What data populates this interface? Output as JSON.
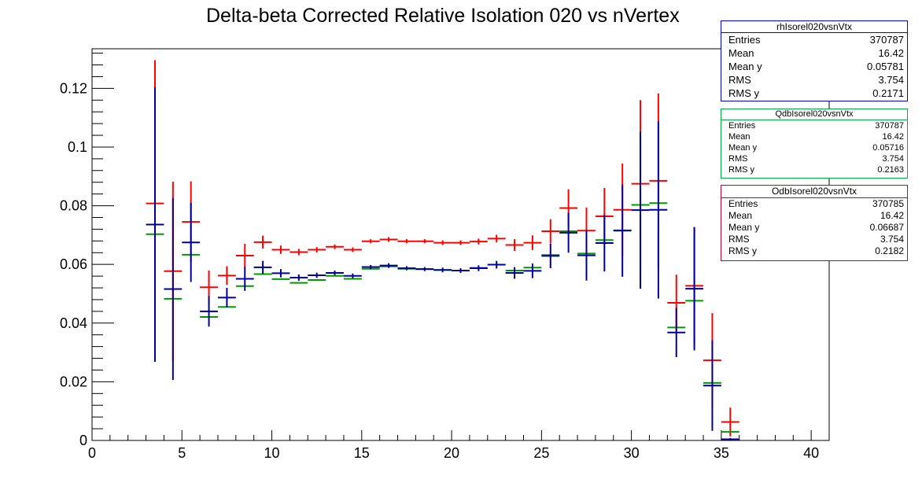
{
  "chart_data": {
    "type": "scatter",
    "title": "Delta-beta Corrected Relative Isolation 020 vs nVertex",
    "xlabel": "",
    "ylabel": "",
    "xlim": [
      0,
      41
    ],
    "ylim": [
      0,
      0.1335
    ],
    "x_ticks": [
      0,
      5,
      10,
      15,
      20,
      25,
      30,
      35,
      40
    ],
    "y_ticks": [
      0,
      0.02,
      0.04,
      0.06,
      0.08,
      0.1,
      0.12
    ],
    "x_tick_labels": [
      "0",
      "5",
      "10",
      "15",
      "20",
      "25",
      "30",
      "35",
      "40"
    ],
    "y_tick_labels": [
      "0",
      "0.02",
      "0.04",
      "0.06",
      "0.08",
      "0.1",
      "0.12"
    ],
    "grid": false,
    "legend": "none",
    "series": [
      {
        "name": "rhIsorel020vsnVtx",
        "color": "#ff0000",
        "x": [
          3.5,
          4.5,
          5.5,
          6.5,
          7.5,
          8.5,
          9.5,
          10.5,
          11.5,
          12.5,
          13.5,
          14.5,
          15.5,
          16.5,
          17.5,
          18.5,
          19.5,
          20.5,
          21.5,
          22.5,
          23.5,
          24.5,
          25.5,
          26.5,
          27.5,
          28.5,
          29.5,
          30.5,
          31.5,
          32.5,
          33.5,
          34.5,
          35.5
        ],
        "y": [
          0.0808,
          0.0577,
          0.0745,
          0.0522,
          0.0562,
          0.063,
          0.0676,
          0.065,
          0.0642,
          0.065,
          0.066,
          0.065,
          0.0679,
          0.0685,
          0.0679,
          0.0679,
          0.0674,
          0.0674,
          0.0678,
          0.0688,
          0.0666,
          0.0674,
          0.0713,
          0.0792,
          0.0715,
          0.0764,
          0.0786,
          0.0875,
          0.0885,
          0.0469,
          0.0527,
          0.0273,
          0.0063
        ],
        "err": [
          0.0488,
          0.0305,
          0.0138,
          0.0057,
          0.0032,
          0.004,
          0.0022,
          0.0014,
          0.0011,
          0.0009,
          0.0008,
          0.0008,
          0.0007,
          0.0008,
          0.0007,
          0.0007,
          0.0008,
          0.0008,
          0.001,
          0.0013,
          0.002,
          0.0025,
          0.0041,
          0.0064,
          0.0079,
          0.0097,
          0.0158,
          0.0285,
          0.0298,
          0.0096,
          0.02,
          0.0161,
          0.0049
        ]
      },
      {
        "name": "QdbIsorel020vsnVtx",
        "color": "#009900",
        "x": [
          3.5,
          4.5,
          5.5,
          6.5,
          7.5,
          8.5,
          9.5,
          10.5,
          11.5,
          12.5,
          13.5,
          14.5,
          15.5,
          16.5,
          17.5,
          18.5,
          19.5,
          20.5,
          21.5,
          22.5,
          23.5,
          24.5,
          25.5,
          26.5,
          27.5,
          28.5,
          29.5,
          30.5,
          31.5,
          32.5,
          33.5,
          34.5,
          35.5
        ],
        "y": [
          0.0703,
          0.0483,
          0.0633,
          0.0421,
          0.0455,
          0.0526,
          0.0567,
          0.055,
          0.0537,
          0.0547,
          0.0561,
          0.0551,
          0.0585,
          0.0593,
          0.0585,
          0.0584,
          0.0581,
          0.0579,
          0.0588,
          0.0599,
          0.0579,
          0.0589,
          0.0632,
          0.0713,
          0.0637,
          0.0683,
          0.0716,
          0.0803,
          0.0809,
          0.0385,
          0.0476,
          0.0196,
          0.0029
        ]
      },
      {
        "name": "OdbIsorel020vsnVtx",
        "color": "#000099",
        "x": [
          3.5,
          4.5,
          5.5,
          6.5,
          7.5,
          8.5,
          9.5,
          10.5,
          11.5,
          12.5,
          13.5,
          14.5,
          15.5,
          16.5,
          17.5,
          18.5,
          19.5,
          20.5,
          21.5,
          22.5,
          23.5,
          24.5,
          25.5,
          26.5,
          27.5,
          28.5,
          29.5,
          30.5,
          31.5,
          32.5,
          33.5,
          34.5,
          35.5
        ],
        "y": [
          0.0736,
          0.0516,
          0.0675,
          0.044,
          0.0487,
          0.0551,
          0.059,
          0.057,
          0.0555,
          0.0563,
          0.0571,
          0.0561,
          0.0591,
          0.0596,
          0.0587,
          0.0584,
          0.0581,
          0.0579,
          0.0587,
          0.0599,
          0.0571,
          0.0578,
          0.0629,
          0.0708,
          0.0631,
          0.0673,
          0.0715,
          0.0785,
          0.0786,
          0.0368,
          0.0517,
          0.0187,
          0.0004
        ],
        "err": [
          0.0468,
          0.031,
          0.0135,
          0.0052,
          0.0033,
          0.0041,
          0.0022,
          0.0014,
          0.0011,
          0.0009,
          0.0008,
          0.0008,
          0.0007,
          0.0008,
          0.0007,
          0.0007,
          0.0008,
          0.0008,
          0.001,
          0.0013,
          0.002,
          0.0025,
          0.0042,
          0.0068,
          0.0086,
          0.0097,
          0.0157,
          0.0268,
          0.0302,
          0.0084,
          0.021,
          0.0154,
          0.0004
        ]
      }
    ]
  },
  "stat_boxes": [
    {
      "title": "rhIsorel020vsnVtx",
      "color": "#0000ff",
      "rows": [
        {
          "label": "Entries",
          "value": "370787"
        },
        {
          "label": "Mean",
          "value": "16.42"
        },
        {
          "label": "Mean y",
          "value": "0.05781"
        },
        {
          "label": "RMS",
          "value": "3.754"
        },
        {
          "label": "RMS y",
          "value": "0.2171"
        }
      ]
    },
    {
      "title": "QdbIsorel020vsnVtx",
      "color": "#00aa44",
      "rows": [
        {
          "label": "Entries",
          "value": "370787"
        },
        {
          "label": "Mean",
          "value": "16.42"
        },
        {
          "label": "Mean y",
          "value": "0.05716"
        },
        {
          "label": "RMS",
          "value": "3.754"
        },
        {
          "label": "RMS y",
          "value": "0.2163"
        }
      ]
    },
    {
      "title": "OdbIsorel020vsnVtx",
      "color": "#cc0022",
      "rows": [
        {
          "label": "Entries",
          "value": "370785"
        },
        {
          "label": "Mean",
          "value": "16.42"
        },
        {
          "label": "Mean y",
          "value": "0.06687"
        },
        {
          "label": "RMS",
          "value": "3.754"
        },
        {
          "label": "RMS y",
          "value": "0.2182"
        }
      ]
    }
  ]
}
